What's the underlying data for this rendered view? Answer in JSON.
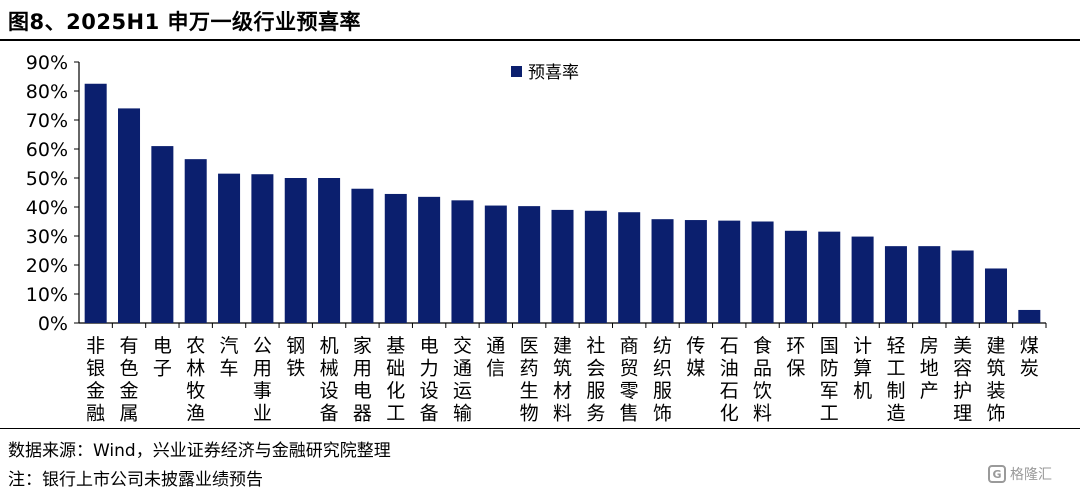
{
  "title": "图8、2025H1 申万一级行业预喜率",
  "source": "数据来源：Wind，兴业证券经济与金融研究院整理",
  "note": "注：银行上市公司未披露业绩预告",
  "watermark": {
    "icon": "gelonghui-logo",
    "text": "格隆汇"
  },
  "colors": {
    "bar": "#0b1f6e",
    "axis": "#000000"
  },
  "chart_data": {
    "type": "bar",
    "ylim": [
      0,
      90
    ],
    "yticks": [
      "0%",
      "10%",
      "20%",
      "30%",
      "40%",
      "50%",
      "60%",
      "70%",
      "80%",
      "90%"
    ],
    "legend": {
      "position": "top-center",
      "label": "预喜率"
    },
    "grid": false,
    "categories": [
      "非银金融",
      "有色金属",
      "电子",
      "农林牧渔",
      "汽车",
      "公用事业",
      "钢铁",
      "机械设备",
      "家用电器",
      "基础化工",
      "电力设备",
      "交通运输",
      "通信",
      "医药生物",
      "建筑材料",
      "社会服务",
      "商贸零售",
      "纺织服饰",
      "传媒",
      "石油石化",
      "食品饮料",
      "环保",
      "国防军工",
      "计算机",
      "轻工制造",
      "房地产",
      "美容护理",
      "建筑装饰",
      "煤炭"
    ],
    "values": [
      82.5,
      74,
      61,
      56.5,
      51.5,
      51.3,
      50,
      50,
      46.3,
      44.5,
      43.5,
      42.3,
      40.5,
      40.3,
      39,
      38.7,
      38.2,
      35.8,
      35.5,
      35.3,
      35,
      31.8,
      31.5,
      29.8,
      26.5,
      26.5,
      25,
      18.8,
      4.5
    ]
  }
}
